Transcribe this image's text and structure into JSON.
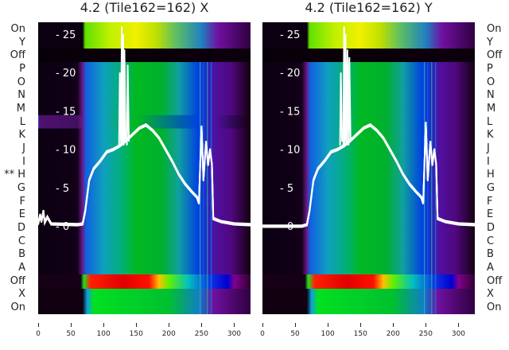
{
  "chart_data": [
    {
      "type": "heatmap",
      "title": "4.2 (Tile162=162) X",
      "row_labels": [
        "On",
        "Y",
        "Off",
        "P",
        "O",
        "N",
        "M",
        "L",
        "K",
        "J",
        "I",
        "H",
        "G",
        "F",
        "E",
        "D",
        "C",
        "B",
        "A",
        "Off",
        "X",
        "On"
      ],
      "marked_row": "H",
      "marker": "**",
      "xticks": [
        0,
        50,
        100,
        150,
        200,
        250,
        300
      ],
      "xlim": [
        0,
        325
      ],
      "yticks": [
        0,
        5,
        10,
        15,
        20,
        25
      ],
      "ylim_overlay": [
        -11.5,
        26.5
      ],
      "profile": [
        [
          0,
          0.3
        ],
        [
          3,
          1.5
        ],
        [
          5,
          0.6
        ],
        [
          8,
          2
        ],
        [
          10,
          0.5
        ],
        [
          14,
          1.2
        ],
        [
          20,
          0.3
        ],
        [
          60,
          0.2
        ],
        [
          68,
          0.3
        ],
        [
          72,
          2
        ],
        [
          78,
          6
        ],
        [
          85,
          7.5
        ],
        [
          95,
          8.5
        ],
        [
          105,
          9.7
        ],
        [
          115,
          10
        ],
        [
          125,
          10.5
        ],
        [
          135,
          11.2
        ],
        [
          145,
          12
        ],
        [
          155,
          12.8
        ],
        [
          165,
          13.2
        ],
        [
          175,
          12.5
        ],
        [
          185,
          11.5
        ],
        [
          195,
          10
        ],
        [
          205,
          8.5
        ],
        [
          215,
          6.8
        ],
        [
          225,
          5.5
        ],
        [
          235,
          4.5
        ],
        [
          243,
          3.8
        ],
        [
          246,
          3
        ],
        [
          250,
          13
        ],
        [
          253,
          6
        ],
        [
          257,
          11
        ],
        [
          260,
          8
        ],
        [
          263,
          10
        ],
        [
          266,
          8
        ],
        [
          268,
          1
        ],
        [
          280,
          0.6
        ],
        [
          300,
          0.3
        ],
        [
          325,
          0.2
        ]
      ],
      "spikes": [
        [
          125,
          20
        ],
        [
          128,
          26
        ],
        [
          130,
          25
        ],
        [
          132,
          23
        ],
        [
          137,
          21
        ]
      ]
    },
    {
      "type": "heatmap",
      "title": "4.2 (Tile162=162) Y",
      "row_labels": [
        "On",
        "Y",
        "Off",
        "P",
        "O",
        "N",
        "M",
        "L",
        "K",
        "J",
        "I",
        "H",
        "G",
        "F",
        "E",
        "D",
        "C",
        "B",
        "A",
        "Off",
        "X",
        "On"
      ],
      "xticks": [
        0,
        50,
        100,
        150,
        200,
        250,
        300
      ],
      "xlim": [
        0,
        325
      ],
      "yticks": [
        0,
        5,
        10,
        15,
        20,
        25
      ],
      "ylim_overlay": [
        -11.5,
        26.5
      ],
      "profile": [
        [
          0,
          0
        ],
        [
          60,
          0
        ],
        [
          68,
          0.2
        ],
        [
          72,
          2
        ],
        [
          78,
          6
        ],
        [
          85,
          7.5
        ],
        [
          95,
          8.5
        ],
        [
          105,
          9.7
        ],
        [
          115,
          10
        ],
        [
          125,
          10.5
        ],
        [
          135,
          11.2
        ],
        [
          145,
          12
        ],
        [
          155,
          12.8
        ],
        [
          165,
          13.2
        ],
        [
          175,
          12.5
        ],
        [
          185,
          11.5
        ],
        [
          195,
          10
        ],
        [
          205,
          8.5
        ],
        [
          215,
          6.8
        ],
        [
          225,
          5.5
        ],
        [
          235,
          4.5
        ],
        [
          243,
          3.8
        ],
        [
          246,
          3
        ],
        [
          250,
          13.5
        ],
        [
          253,
          6
        ],
        [
          257,
          11
        ],
        [
          260,
          8
        ],
        [
          263,
          10
        ],
        [
          266,
          8
        ],
        [
          268,
          1
        ],
        [
          280,
          0.6
        ],
        [
          300,
          0.3
        ],
        [
          325,
          0.2
        ]
      ],
      "spikes": [
        [
          120,
          20
        ],
        [
          125,
          26
        ],
        [
          127,
          25
        ],
        [
          130,
          23
        ],
        [
          133,
          22
        ]
      ]
    }
  ]
}
